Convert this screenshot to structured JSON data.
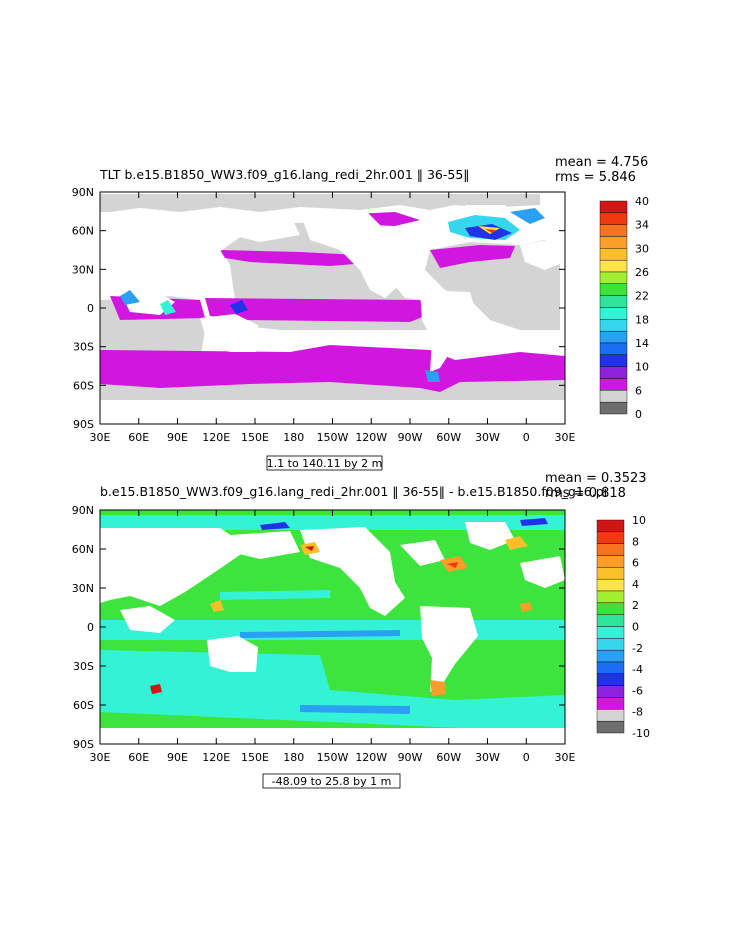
{
  "chart_data": [
    {
      "type": "heatmap",
      "title": "TLT b.e15.B1850_WW3.f09_g16.lang_redi_2hr.001 ‖ 36-55‖",
      "stats": {
        "mean": "mean = 4.756",
        "rms": "rms = 5.846"
      },
      "x_ticks": [
        "30E",
        "60E",
        "90E",
        "120E",
        "150E",
        "180",
        "150W",
        "120W",
        "90W",
        "60W",
        "30W",
        "0",
        "30E"
      ],
      "y_ticks": [
        "90N",
        "60N",
        "30N",
        "0",
        "30S",
        "60S",
        "90S"
      ],
      "colorbar_labels": [
        "40",
        "34",
        "30",
        "26",
        "22",
        "18",
        "14",
        "10",
        "6",
        "0"
      ],
      "colorbar_colors": [
        "#d41515",
        "#ee3a10",
        "#f7731f",
        "#fd9d2a",
        "#fbbf29",
        "#ffe34a",
        "#a4ee31",
        "#3fe13b",
        "#30e39a",
        "#33f2d5",
        "#36d7ee",
        "#2b9ff2",
        "#1b6df2",
        "#2133e8",
        "#8c22dc",
        "#d416dd",
        "#d4d4d4",
        "#6e6e6e"
      ],
      "range_label": "1.1 to 140.11 by 2 m",
      "field_colors": {
        "ocean": "#d116e0",
        "land": "#ffffff",
        "ice": "#d4d4d4"
      }
    },
    {
      "type": "heatmap",
      "title": "b.e15.B1850_WW3.f09_g16.lang_redi_2hr.001 ‖ 36-55‖ - b.e15.B1850.f09_g16.pi",
      "stats": {
        "mean": "mean = 0.3523",
        "rms": "rms = 0.818"
      },
      "x_ticks": [
        "30E",
        "60E",
        "90E",
        "120E",
        "150E",
        "180",
        "150W",
        "120W",
        "90W",
        "60W",
        "30W",
        "0",
        "30E"
      ],
      "y_ticks": [
        "90N",
        "60N",
        "30N",
        "0",
        "30S",
        "60S",
        "90S"
      ],
      "colorbar_labels": [
        "10",
        "8",
        "6",
        "4",
        "2",
        "0",
        "-2",
        "-4",
        "-6",
        "-8",
        "-10"
      ],
      "colorbar_colors": [
        "#d41515",
        "#ee3a10",
        "#f7731f",
        "#fd9d2a",
        "#fbbf29",
        "#ffe34a",
        "#a4ee31",
        "#3fe13b",
        "#30e39a",
        "#33f2d5",
        "#36d7ee",
        "#2b9ff2",
        "#1b6df2",
        "#2133e8",
        "#8c22dc",
        "#d416dd",
        "#d4d4d4",
        "#6e6e6e"
      ],
      "range_label": "-48.09 to 25.8 by 1 m",
      "field_colors": {
        "ocean": "#3de43d",
        "land": "#ffffff",
        "southern": "#33f2d5"
      }
    }
  ]
}
